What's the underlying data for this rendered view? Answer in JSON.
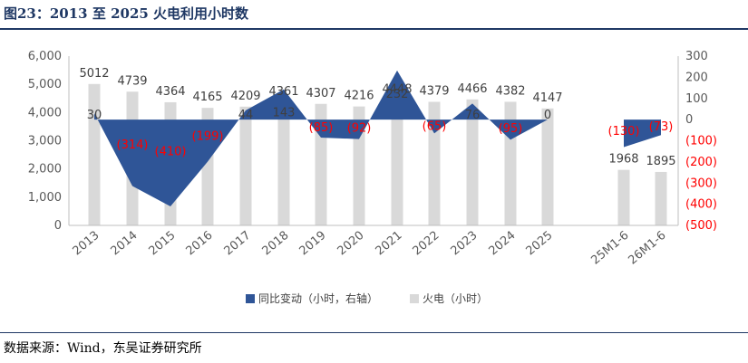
{
  "header": {
    "title": "图23：2013 至 2025 火电利用小时数"
  },
  "footer": {
    "source": "数据来源：Wind，东吴证券研究所"
  },
  "chart_data": {
    "type": "bar",
    "categories": [
      "2013",
      "2014",
      "2015",
      "2016",
      "2017",
      "2018",
      "2019",
      "2020",
      "2021",
      "2022",
      "2023",
      "2024",
      "2025",
      "25M1-6",
      "26M1-6"
    ],
    "series": [
      {
        "name": "火电（小时）",
        "axis": "left",
        "type": "bar",
        "values": [
          5012,
          4739,
          4364,
          4165,
          4209,
          4361,
          4307,
          4216,
          4448,
          4379,
          4466,
          4382,
          4147,
          1968,
          1895
        ],
        "labels": [
          "5012",
          "4739",
          "4364",
          "4165",
          "4209",
          "4361",
          "4307",
          "4216",
          "4448",
          "4379",
          "4466",
          "4382",
          "4147",
          "1968",
          "1895"
        ]
      },
      {
        "name": "同比变动（小时，右轴）",
        "axis": "right",
        "type": "area",
        "values": [
          30,
          -314,
          -410,
          -199,
          44,
          143,
          -85,
          -92,
          232,
          -65,
          76,
          -95,
          0,
          -130,
          -73
        ],
        "labels": [
          "30",
          "(314)",
          "(410)",
          "(199)",
          "44",
          "143",
          "(85)",
          "(92)",
          "232",
          "(65)",
          "76",
          "(95)",
          "0",
          "(130)",
          "(73)"
        ]
      }
    ],
    "y_left": {
      "ylim": [
        0,
        6000
      ],
      "ticks": [
        "0",
        "1,000",
        "2,000",
        "3,000",
        "4,000",
        "5,000",
        "6,000"
      ]
    },
    "y_right": {
      "ylim": [
        -500,
        300
      ],
      "ticks": [
        "(500)",
        "(400)",
        "(300)",
        "(200)",
        "(100)",
        "0",
        "100",
        "200",
        "300"
      ]
    },
    "colors": {
      "bar": "#d9d9d9",
      "area": "#2f5597",
      "negative_label": "#ff0000",
      "axis": "#bfbfbf"
    },
    "legend_position": "bottom"
  }
}
